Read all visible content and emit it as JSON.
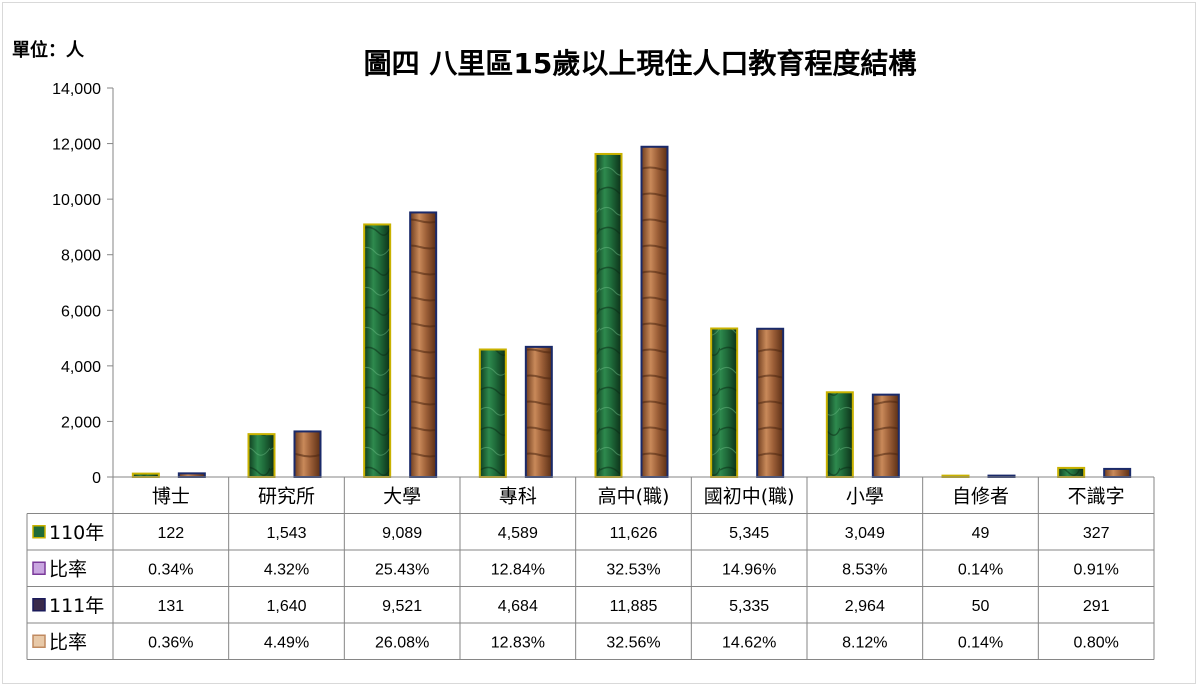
{
  "unit_label": "單位：人",
  "chart_data": {
    "type": "bar",
    "title": "圖四  八里區15歲以上現住人口教育程度結構",
    "xlabel": "",
    "ylabel": "",
    "ylim": [
      0,
      14000
    ],
    "yticks": [
      "0",
      "2,000",
      "4,000",
      "6,000",
      "8,000",
      "10,000",
      "12,000",
      "14,000"
    ],
    "categories": [
      "博士",
      "研究所",
      "大學",
      "專科",
      "高中(職)",
      "國初中(職)",
      "小學",
      "自修者",
      "不識字"
    ],
    "series": [
      {
        "name": "110年",
        "color": "#1f6b3a",
        "values": [
          122,
          1543,
          9089,
          4589,
          11626,
          5345,
          3049,
          49,
          327
        ]
      },
      {
        "name": "111年",
        "color": "#a0623a",
        "values": [
          131,
          1640,
          9521,
          4684,
          11885,
          5335,
          2964,
          50,
          291
        ]
      }
    ],
    "table_rows": [
      {
        "label": "110年",
        "marker_color": "#1f6b3a",
        "marker_border": "#c9b200",
        "cells": [
          "122",
          "1,543",
          "9,089",
          "4,589",
          "11,626",
          "5,345",
          "3,049",
          "49",
          "327"
        ]
      },
      {
        "label": "比率",
        "marker_color": "#c9a6e0",
        "marker_border": "#7a3a9a",
        "cells": [
          "0.34%",
          "4.32%",
          "25.43%",
          "12.84%",
          "32.53%",
          "14.96%",
          "8.53%",
          "0.14%",
          "0.91%"
        ]
      },
      {
        "label": "111年",
        "marker_color": "#3a2a4a",
        "marker_border": "#1a1a5a",
        "cells": [
          "131",
          "1,640",
          "9,521",
          "4,684",
          "11,885",
          "5,335",
          "2,964",
          "50",
          "291"
        ]
      },
      {
        "label": "比率",
        "marker_color": "#e8c9a8",
        "marker_border": "#c08a60",
        "cells": [
          "0.36%",
          "4.49%",
          "26.08%",
          "12.83%",
          "32.56%",
          "14.62%",
          "8.12%",
          "0.14%",
          "0.80%"
        ]
      }
    ],
    "grid": false,
    "legend": "data-table"
  }
}
